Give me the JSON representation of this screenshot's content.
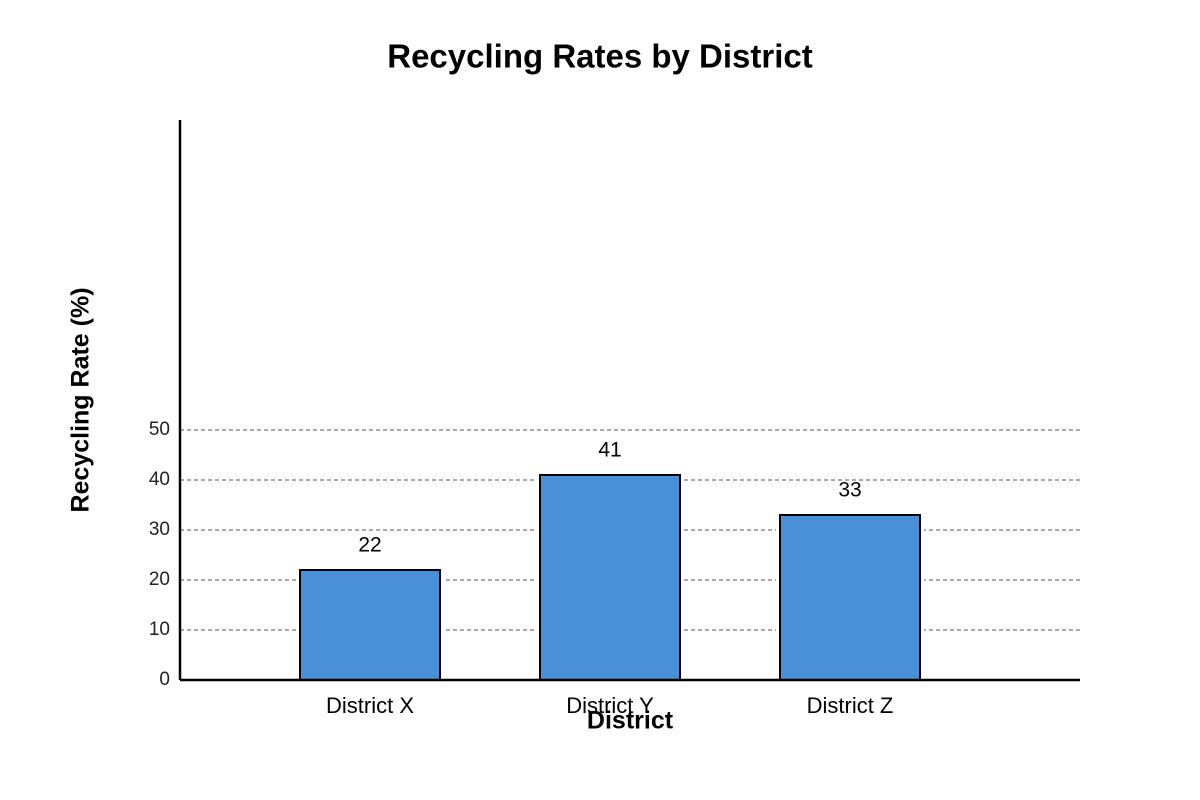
{
  "chart_data": {
    "type": "bar",
    "title": "Recycling Rates by District",
    "x_label": "District",
    "y_label": "Recycling Rate (%)",
    "categories": [
      "District X",
      "District Y",
      "District Z"
    ],
    "values": [
      22,
      41,
      33
    ],
    "color": "#4a90d9",
    "ylim": [
      0,
      112
    ],
    "yticks": [
      0,
      10,
      20,
      30,
      40,
      50
    ],
    "grid": true
  }
}
